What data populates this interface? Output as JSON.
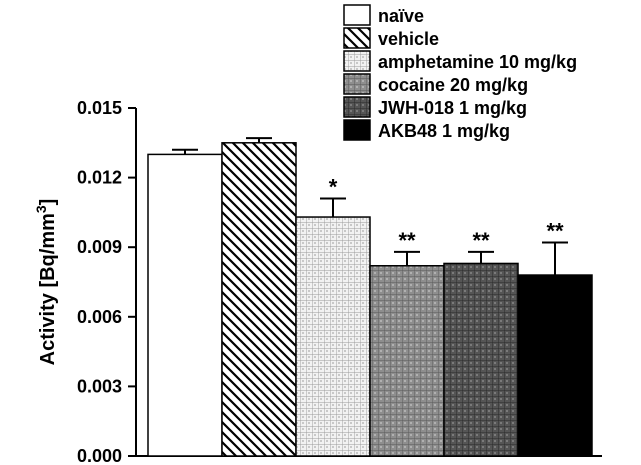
{
  "chart_data": {
    "type": "bar",
    "title": "",
    "xlabel": "",
    "ylabel": "Activity [Bq/mm",
    "ylabel_superscript": "3",
    "ylabel_close": "]",
    "ylim": [
      0,
      0.015
    ],
    "yticks": [
      "0.000",
      "0.003",
      "0.006",
      "0.009",
      "0.012",
      "0.015"
    ],
    "ytick_values": [
      0,
      0.003,
      0.006,
      0.009,
      0.012,
      0.015
    ],
    "categories": [
      "naïve",
      "vehicle",
      "amphetamine 10 mg/kg",
      "cocaine 20 mg/kg",
      "JWH-018 1 mg/kg",
      "AKB48 1 mg/kg"
    ],
    "values": [
      0.013,
      0.0135,
      0.0103,
      0.0082,
      0.0083,
      0.0078
    ],
    "errors": [
      0.0002,
      0.0002,
      0.0008,
      0.0006,
      0.0005,
      0.0014
    ],
    "significance": [
      "",
      "",
      "*",
      "**",
      "**",
      "**"
    ],
    "fills": [
      "white",
      "diagonal",
      "lightgrid",
      "midgrid",
      "darkgrid",
      "black"
    ],
    "legend_position": "top-right"
  }
}
